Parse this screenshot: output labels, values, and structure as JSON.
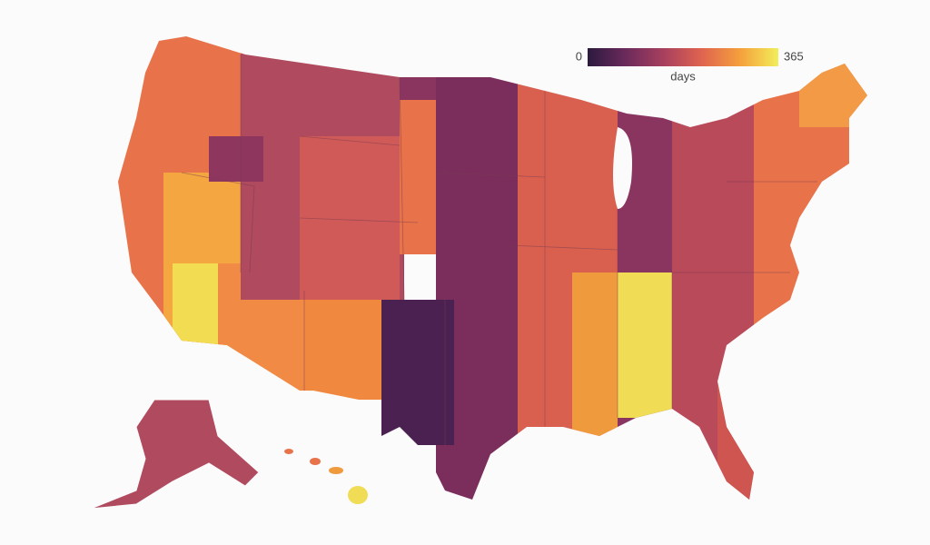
{
  "colorbar": {
    "range": [
      0,
      365
    ],
    "ticks": [
      0,
      365
    ],
    "label": "days",
    "colors": [
      "#2b1a3e",
      "#6b2a5c",
      "#a8405e",
      "#e0644f",
      "#f5a03c",
      "#f2ee5a"
    ]
  }
}
